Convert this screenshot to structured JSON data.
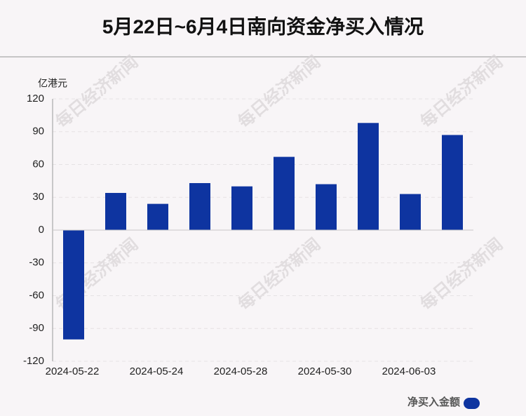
{
  "chart_data": {
    "type": "bar",
    "title": "5月22日~6月4日南向资金净买入情况",
    "y_unit": "亿港元",
    "categories": [
      "2024-05-22",
      null,
      "2024-05-24",
      null,
      "2024-05-28",
      null,
      "2024-05-30",
      null,
      "2024-06-03",
      null
    ],
    "series": [
      {
        "name": "净买入金额",
        "color": "#0e34a0",
        "values": [
          -100,
          34,
          24,
          43,
          40,
          67,
          42,
          98,
          33,
          87
        ]
      }
    ],
    "ylim": [
      -120,
      120
    ],
    "yticks": [
      -120,
      -90,
      -60,
      -30,
      0,
      30,
      60,
      90,
      120
    ],
    "grid": true,
    "legend": "bottom-right",
    "watermark": "每日经济新闻"
  }
}
